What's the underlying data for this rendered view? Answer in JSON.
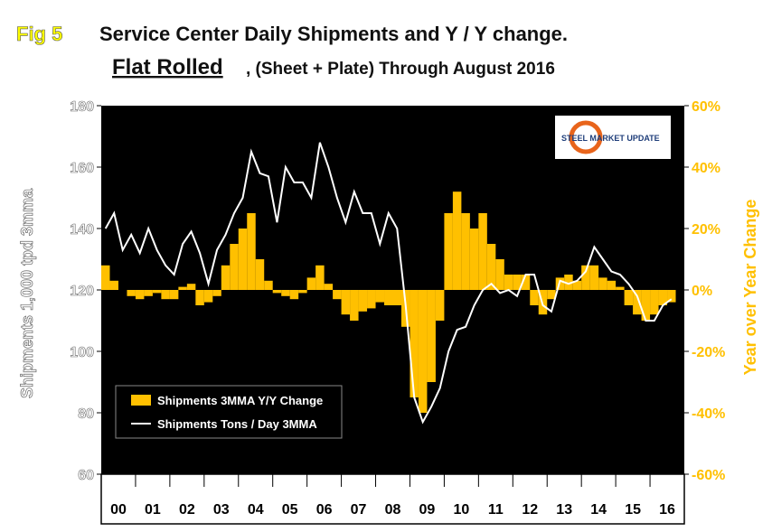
{
  "chart_data": {
    "type": "bar_line",
    "fig_label": "Fig 5",
    "title": "Service Center Daily Shipments and Y / Y change.",
    "subtitle_main": "Flat Rolled",
    "subtitle_rest": ", (Sheet + Plate) Through August 2016",
    "logo_text": "STEEL MARKET UPDATE",
    "ylabel": "Shipments 1,000 tpd 3mma",
    "y2label": "Year over Year Change",
    "xlim": [
      0,
      17
    ],
    "xticks": [
      {
        "value": 0.5,
        "label": "00"
      },
      {
        "value": 1.5,
        "label": "01"
      },
      {
        "value": 2.5,
        "label": "02"
      },
      {
        "value": 3.5,
        "label": "03"
      },
      {
        "value": 4.5,
        "label": "04"
      },
      {
        "value": 5.5,
        "label": "05"
      },
      {
        "value": 6.5,
        "label": "06"
      },
      {
        "value": 7.5,
        "label": "07"
      },
      {
        "value": 8.5,
        "label": "08"
      },
      {
        "value": 9.5,
        "label": "09"
      },
      {
        "value": 10.5,
        "label": "10"
      },
      {
        "value": 11.5,
        "label": "11"
      },
      {
        "value": 12.5,
        "label": "12"
      },
      {
        "value": 13.5,
        "label": "13"
      },
      {
        "value": 14.5,
        "label": "14"
      },
      {
        "value": 15.5,
        "label": "15"
      },
      {
        "value": 16.5,
        "label": "16"
      }
    ],
    "ylim": [
      60,
      180
    ],
    "yticks": [
      60,
      80,
      100,
      120,
      140,
      160,
      180
    ],
    "y2lim": [
      -60,
      60
    ],
    "y2ticks": [
      {
        "value": -60,
        "label": "-60%"
      },
      {
        "value": -40,
        "label": "-40%"
      },
      {
        "value": -20,
        "label": "-20%"
      },
      {
        "value": 0,
        "label": "0%"
      },
      {
        "value": 20,
        "label": "20%"
      },
      {
        "value": 40,
        "label": "40%"
      },
      {
        "value": 60,
        "label": "60%"
      }
    ],
    "x": [
      0.125,
      0.375,
      0.625,
      0.875,
      1.125,
      1.375,
      1.625,
      1.875,
      2.125,
      2.375,
      2.625,
      2.875,
      3.125,
      3.375,
      3.625,
      3.875,
      4.125,
      4.375,
      4.625,
      4.875,
      5.125,
      5.375,
      5.625,
      5.875,
      6.125,
      6.375,
      6.625,
      6.875,
      7.125,
      7.375,
      7.625,
      7.875,
      8.125,
      8.375,
      8.625,
      8.875,
      9.125,
      9.375,
      9.625,
      9.875,
      10.125,
      10.375,
      10.625,
      10.875,
      11.125,
      11.375,
      11.625,
      11.875,
      12.125,
      12.375,
      12.625,
      12.875,
      13.125,
      13.375,
      13.625,
      13.875,
      14.125,
      14.375,
      14.625,
      14.875,
      15.125,
      15.375,
      15.625,
      15.875,
      16.125,
      16.375,
      16.625
    ],
    "series": [
      {
        "name": "Shipments 3MMA Y/Y Change",
        "color": "#ffc000",
        "axis": "y2",
        "values": [
          8,
          3,
          0,
          -2,
          -3,
          -2,
          -1,
          -3,
          -3,
          1,
          2,
          -5,
          -4,
          -2,
          8,
          15,
          20,
          25,
          10,
          3,
          -1,
          -2,
          -3,
          -1,
          4,
          8,
          2,
          -3,
          -8,
          -10,
          -7,
          -6,
          -4,
          -5,
          -5,
          -12,
          -35,
          -40,
          -30,
          -10,
          25,
          32,
          25,
          20,
          25,
          15,
          10,
          5,
          5,
          5,
          -5,
          -8,
          -3,
          4,
          5,
          3,
          8,
          8,
          4,
          3,
          1,
          -5,
          -8,
          -10,
          -8,
          -5,
          -4
        ]
      },
      {
        "name": "Shipments Tons / Day 3MMA",
        "color": "#ffffff",
        "values": [
          140,
          145,
          133,
          138,
          132,
          140,
          133,
          128,
          125,
          135,
          139,
          132,
          122,
          133,
          138,
          145,
          150,
          165,
          158,
          157,
          142,
          160,
          155,
          155,
          150,
          168,
          160,
          150,
          142,
          152,
          145,
          145,
          135,
          145,
          140,
          115,
          85,
          77,
          82,
          88,
          100,
          107,
          108,
          115,
          120,
          122,
          119,
          120,
          118,
          125,
          125,
          115,
          113,
          123,
          122,
          123,
          126,
          134,
          130,
          126,
          125,
          122,
          118,
          110,
          110,
          115,
          117
        ]
      }
    ]
  }
}
